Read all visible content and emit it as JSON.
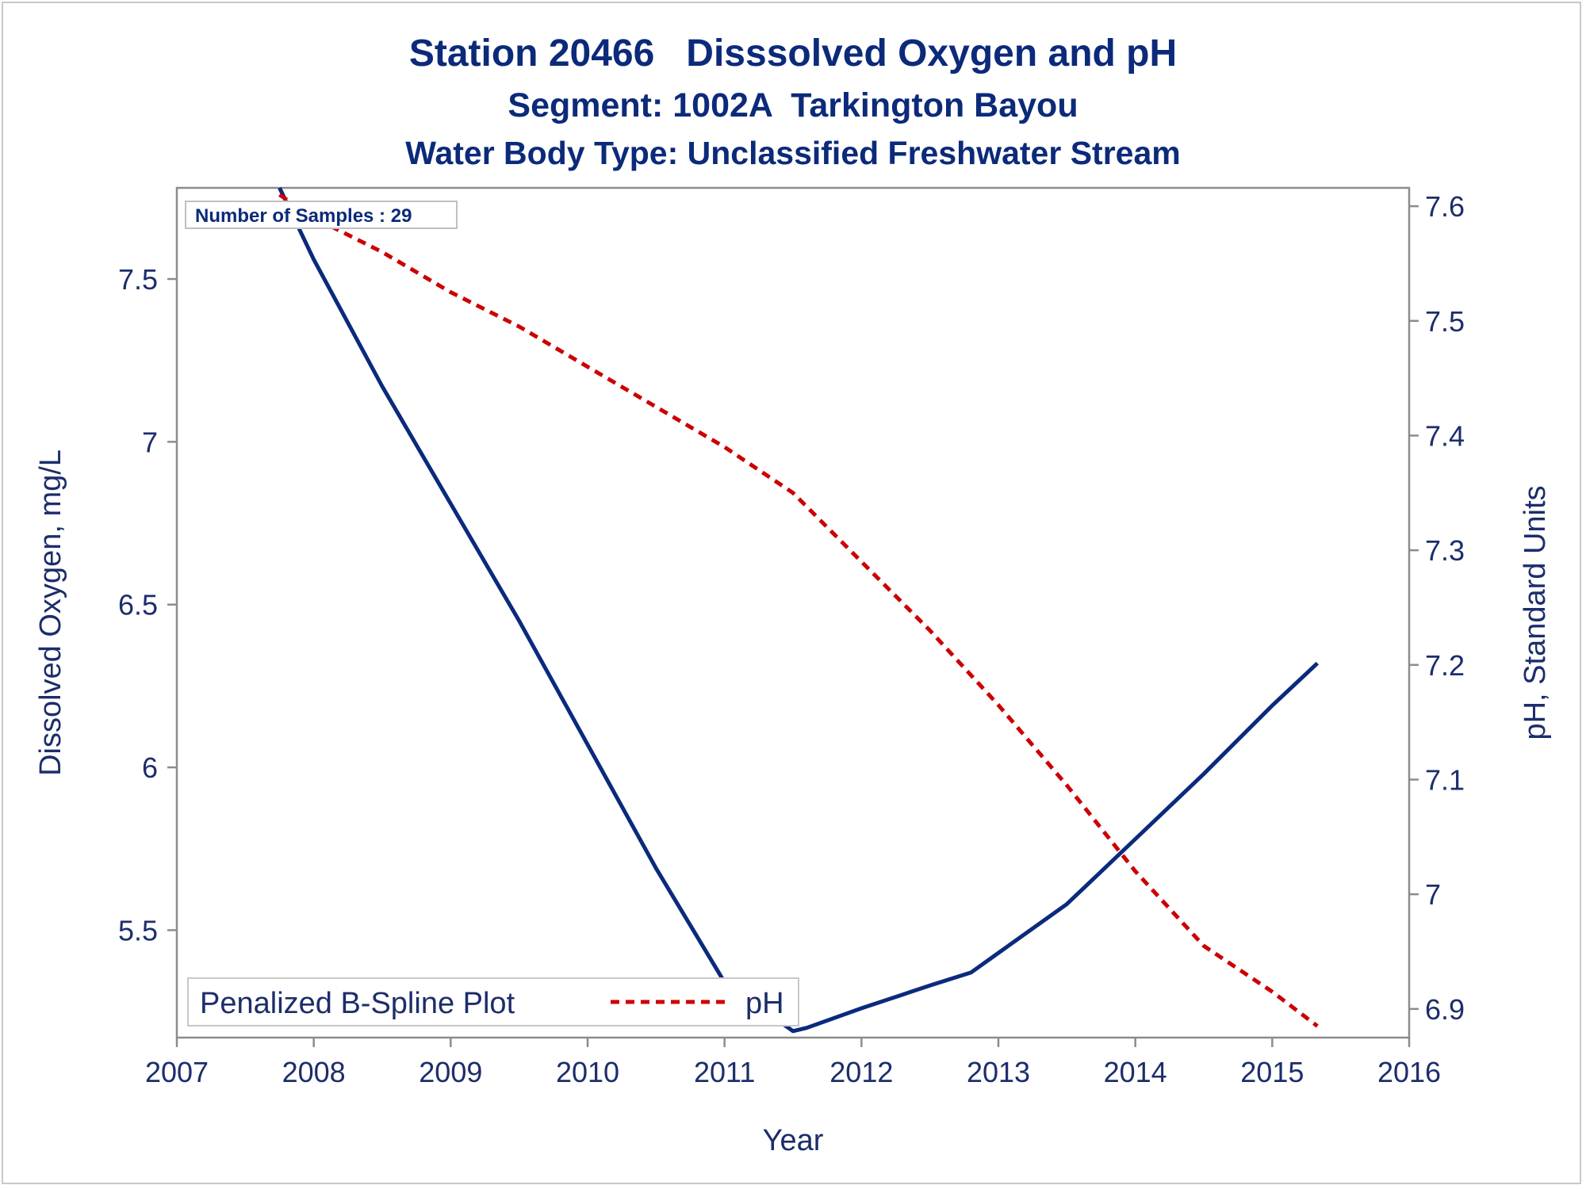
{
  "chart_data": {
    "type": "line",
    "title": "Station 20466   Disssolved Oxygen and pH",
    "subtitle": "Segment: 1002A  Tarkington Bayou",
    "subtitle2": "Water Body Type: Unclassified Freshwater Stream",
    "annotation": "Number of Samples : 29",
    "xlabel": "Year",
    "ylabel": "Dissolved Oxygen, mg/L",
    "y2label": "pH, Standard Units",
    "xlim": [
      2007,
      2016
    ],
    "ylim": [
      5.17,
      7.78
    ],
    "y2lim": [
      6.875,
      7.616
    ],
    "xticks": [
      "2007",
      "2008",
      "2009",
      "2010",
      "2011",
      "2012",
      "2013",
      "2014",
      "2015",
      "2016"
    ],
    "yticks": [
      "5.5",
      "6",
      "6.5",
      "7",
      "7.5"
    ],
    "y2ticks": [
      "6.9",
      "7",
      "7.1",
      "7.2",
      "7.3",
      "7.4",
      "7.5",
      "7.6"
    ],
    "legend": {
      "title": "Penalized B-Spline Plot",
      "entry": "pH",
      "position": "bottom-left"
    },
    "grid": false,
    "series": [
      {
        "key": "do",
        "axis": "left",
        "color": "#0a2a7c",
        "style": "solid",
        "x": [
          2007.75,
          2008.0,
          2008.5,
          2009.0,
          2009.5,
          2010.0,
          2010.5,
          2011.0,
          2011.5,
          2011.6,
          2012.0,
          2012.5,
          2012.8,
          2013.0,
          2013.5,
          2014.0,
          2014.5,
          2015.0,
          2015.33
        ],
        "values": [
          7.78,
          7.56,
          7.17,
          6.81,
          6.45,
          6.07,
          5.69,
          5.34,
          5.19,
          5.2,
          5.26,
          5.33,
          5.37,
          5.43,
          5.58,
          5.78,
          5.98,
          6.19,
          6.32
        ]
      },
      {
        "key": "ph",
        "axis": "right",
        "name": "pH",
        "color": "#cc0000",
        "style": "dashed",
        "x": [
          2007.75,
          2008.0,
          2008.5,
          2009.0,
          2009.5,
          2010.0,
          2010.5,
          2011.0,
          2011.5,
          2012.0,
          2012.5,
          2013.0,
          2013.5,
          2014.0,
          2014.5,
          2015.0,
          2015.33
        ],
        "values": [
          7.61,
          7.59,
          7.56,
          7.525,
          7.495,
          7.46,
          7.425,
          7.39,
          7.35,
          7.29,
          7.23,
          7.165,
          7.095,
          7.02,
          6.955,
          6.915,
          6.885
        ]
      }
    ]
  },
  "colors": {
    "text": "#1c2d6b",
    "axis": "#8c8c8c",
    "do_line": "#0a2a7c",
    "ph_line": "#cc0000"
  }
}
